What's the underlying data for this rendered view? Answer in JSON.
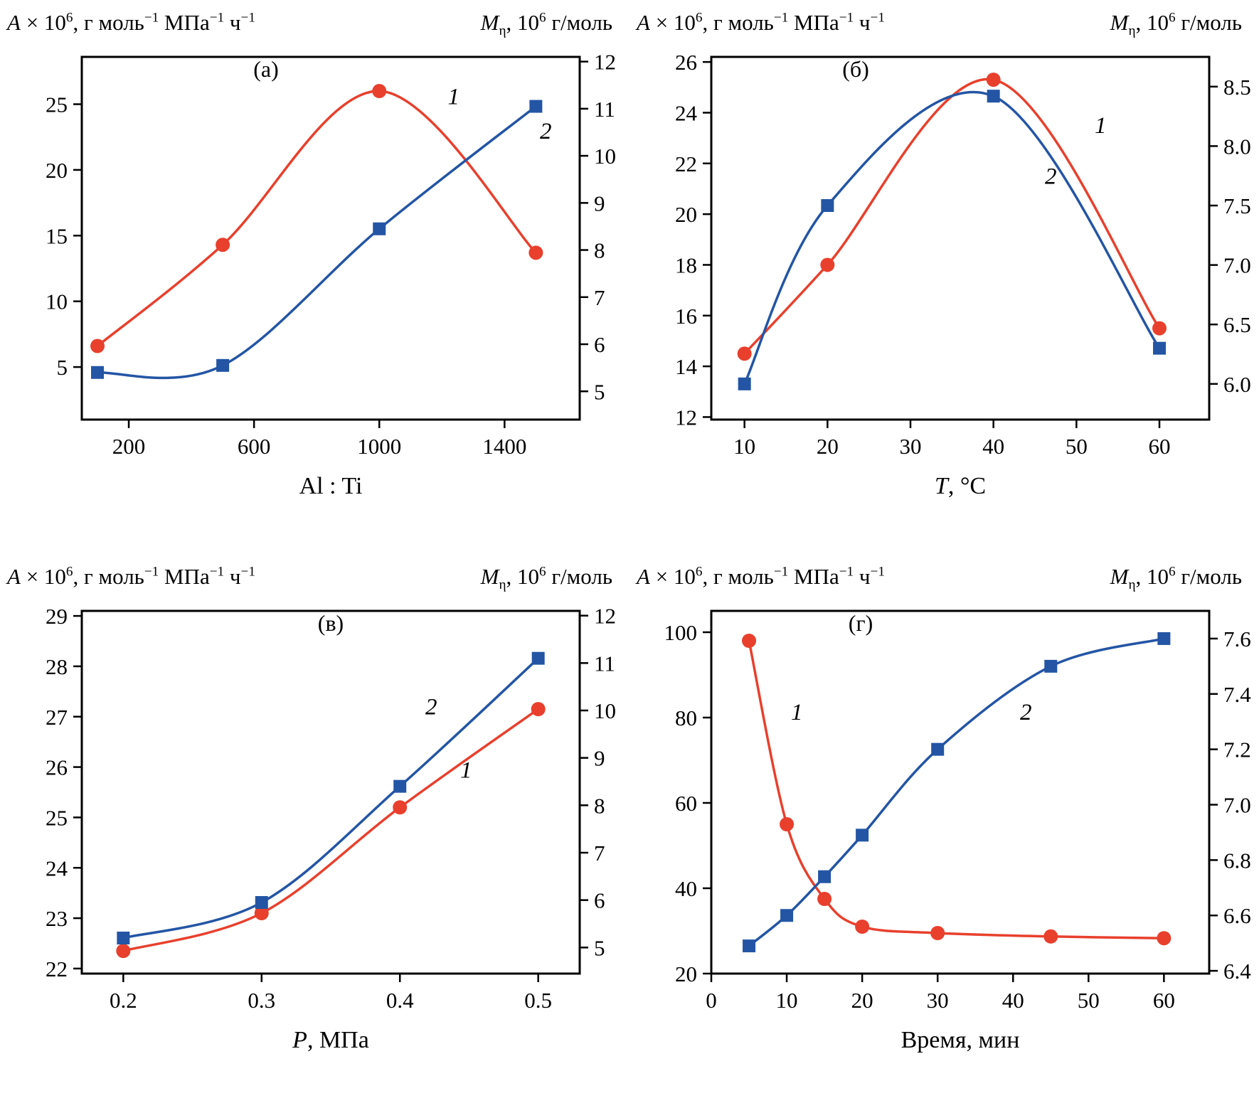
{
  "chart_data": [
    {
      "type": "line",
      "panel_label": "(а)",
      "panel_pos": {
        "fx": 0.37,
        "fy": 0.055
      },
      "left_title": [
        [
          "i",
          "A"
        ],
        [
          "n",
          " × 10"
        ],
        [
          "sup",
          "6"
        ],
        [
          "n",
          ", г моль"
        ],
        [
          "sup",
          "−1"
        ],
        [
          "n",
          " МПа"
        ],
        [
          "sup",
          "−1"
        ],
        [
          "n",
          " ч"
        ],
        [
          "sup",
          "−1"
        ]
      ],
      "right_title": [
        [
          "i",
          "M"
        ],
        [
          "sub",
          "η"
        ],
        [
          "n",
          ", 10"
        ],
        [
          "sup",
          "6"
        ],
        [
          "n",
          " г/моль"
        ]
      ],
      "xlabel": [
        [
          "n",
          "Al : Ti"
        ]
      ],
      "x_ticks": [
        200,
        600,
        1000,
        1400
      ],
      "x_decimals": 0,
      "xlim": [
        50,
        1640
      ],
      "left_axis": {
        "ticks": [
          5,
          10,
          15,
          20,
          25
        ],
        "decimals": 0,
        "lim": [
          1,
          28.6
        ]
      },
      "right_axis": {
        "ticks": [
          5,
          6,
          7,
          8,
          9,
          10,
          11,
          12
        ],
        "decimals": 0,
        "lim": [
          4.4,
          12.1
        ]
      },
      "series": [
        {
          "name": "1",
          "axis": "left",
          "marker": "circle",
          "color": "#e8402d",
          "x": [
            100,
            500,
            1000,
            1500
          ],
          "y": [
            6.6,
            14.3,
            26.0,
            13.7
          ],
          "label_pos": {
            "fx": 0.735,
            "fy": 0.13
          }
        },
        {
          "name": "2",
          "axis": "right",
          "marker": "square",
          "color": "#2355a4",
          "x": [
            100,
            500,
            1000,
            1500
          ],
          "y": [
            5.4,
            5.55,
            8.45,
            11.05
          ],
          "label_pos": {
            "fx": 0.92,
            "fy": 0.225
          }
        }
      ]
    },
    {
      "type": "line",
      "panel_label": "(б)",
      "panel_pos": {
        "fx": 0.29,
        "fy": 0.055
      },
      "left_title": [
        [
          "i",
          "A"
        ],
        [
          "n",
          " × 10"
        ],
        [
          "sup",
          "6"
        ],
        [
          "n",
          ", г моль"
        ],
        [
          "sup",
          "−1"
        ],
        [
          "n",
          " МПа"
        ],
        [
          "sup",
          "−1"
        ],
        [
          "n",
          " ч"
        ],
        [
          "sup",
          "−1"
        ]
      ],
      "right_title": [
        [
          "i",
          "M"
        ],
        [
          "sub",
          "η"
        ],
        [
          "n",
          ", 10"
        ],
        [
          "sup",
          "6"
        ],
        [
          "n",
          " г/моль"
        ]
      ],
      "xlabel": [
        [
          "i",
          "T"
        ],
        [
          "n",
          ", °C"
        ]
      ],
      "x_ticks": [
        10,
        20,
        30,
        40,
        50,
        60
      ],
      "x_decimals": 0,
      "xlim": [
        6,
        66
      ],
      "left_axis": {
        "ticks": [
          12,
          14,
          16,
          18,
          20,
          22,
          24,
          26
        ],
        "decimals": 0,
        "lim": [
          11.9,
          26.2
        ]
      },
      "right_axis": {
        "ticks": [
          6.0,
          6.5,
          7.0,
          7.5,
          8.0,
          8.5
        ],
        "decimals": 1,
        "lim": [
          5.7,
          8.75
        ]
      },
      "series": [
        {
          "name": "1",
          "axis": "left",
          "marker": "circle",
          "color": "#e8402d",
          "x": [
            10,
            20,
            40,
            60
          ],
          "y": [
            14.5,
            18.0,
            25.3,
            15.5
          ],
          "label_pos": {
            "fx": 0.77,
            "fy": 0.21
          }
        },
        {
          "name": "2",
          "axis": "right",
          "marker": "square",
          "color": "#2355a4",
          "x": [
            10,
            20,
            40,
            60
          ],
          "y": [
            6.0,
            7.5,
            8.42,
            6.3
          ],
          "label_pos": {
            "fx": 0.67,
            "fy": 0.35
          }
        }
      ]
    },
    {
      "type": "line",
      "panel_label": "(в)",
      "panel_pos": {
        "fx": 0.5,
        "fy": 0.055
      },
      "left_title": [
        [
          "i",
          "A"
        ],
        [
          "n",
          " × 10"
        ],
        [
          "sup",
          "6"
        ],
        [
          "n",
          ", г моль"
        ],
        [
          "sup",
          "−1"
        ],
        [
          "n",
          " МПа"
        ],
        [
          "sup",
          "−1"
        ],
        [
          "n",
          " ч"
        ],
        [
          "sup",
          "−1"
        ]
      ],
      "right_title": [
        [
          "i",
          "M"
        ],
        [
          "sub",
          "η"
        ],
        [
          "n",
          ", 10"
        ],
        [
          "sup",
          "6"
        ],
        [
          "n",
          " г/моль"
        ]
      ],
      "xlabel": [
        [
          "i",
          "P"
        ],
        [
          "n",
          ", МПа"
        ]
      ],
      "x_ticks": [
        0.2,
        0.3,
        0.4,
        0.5
      ],
      "x_decimals": 1,
      "xlim": [
        0.17,
        0.53
      ],
      "left_axis": {
        "ticks": [
          22,
          23,
          24,
          25,
          26,
          27,
          28,
          29
        ],
        "decimals": 0,
        "lim": [
          21.9,
          29.1
        ]
      },
      "right_axis": {
        "ticks": [
          5,
          6,
          7,
          8,
          9,
          10,
          11,
          12
        ],
        "decimals": 0,
        "lim": [
          4.45,
          12.1
        ]
      },
      "series": [
        {
          "name": "1",
          "axis": "left",
          "marker": "circle",
          "color": "#e8402d",
          "x": [
            0.2,
            0.3,
            0.4,
            0.5
          ],
          "y": [
            22.35,
            23.1,
            25.2,
            27.15
          ],
          "label_pos": {
            "fx": 0.76,
            "fy": 0.46
          }
        },
        {
          "name": "2",
          "axis": "right",
          "marker": "square",
          "color": "#2355a4",
          "x": [
            0.2,
            0.3,
            0.4,
            0.5
          ],
          "y": [
            5.2,
            5.95,
            8.4,
            11.1
          ],
          "label_pos": {
            "fx": 0.69,
            "fy": 0.285
          }
        }
      ]
    },
    {
      "type": "line",
      "panel_label": "(г)",
      "panel_pos": {
        "fx": 0.3,
        "fy": 0.055
      },
      "left_title": [
        [
          "i",
          "A"
        ],
        [
          "n",
          " × 10"
        ],
        [
          "sup",
          "6"
        ],
        [
          "n",
          ", г моль"
        ],
        [
          "sup",
          "−1"
        ],
        [
          "n",
          " МПа"
        ],
        [
          "sup",
          "−1"
        ],
        [
          "n",
          " ч"
        ],
        [
          "sup",
          "−1"
        ]
      ],
      "right_title": [
        [
          "i",
          "M"
        ],
        [
          "sub",
          "η"
        ],
        [
          "n",
          ", 10"
        ],
        [
          "sup",
          "6"
        ],
        [
          "n",
          " г/моль"
        ]
      ],
      "xlabel": [
        [
          "n",
          "Время, мин"
        ]
      ],
      "x_ticks": [
        0,
        10,
        20,
        30,
        40,
        50,
        60
      ],
      "x_decimals": 0,
      "xlim": [
        0,
        66
      ],
      "left_axis": {
        "ticks": [
          20,
          40,
          60,
          80,
          100
        ],
        "decimals": 0,
        "lim": [
          20,
          105
        ]
      },
      "right_axis": {
        "ticks": [
          6.4,
          6.6,
          6.8,
          7.0,
          7.2,
          7.4,
          7.6
        ],
        "decimals": 1,
        "lim": [
          6.39,
          7.7
        ]
      },
      "series": [
        {
          "name": "1",
          "axis": "left",
          "marker": "circle",
          "color": "#e8402d",
          "x": [
            5,
            10,
            15,
            20,
            30,
            45,
            60
          ],
          "y": [
            98,
            55,
            37.5,
            31,
            29.5,
            28.7,
            28.3
          ],
          "label_pos": {
            "fx": 0.16,
            "fy": 0.3
          }
        },
        {
          "name": "2",
          "axis": "right",
          "marker": "square",
          "color": "#2355a4",
          "x": [
            5,
            10,
            15,
            20,
            30,
            45,
            60
          ],
          "y": [
            6.49,
            6.6,
            6.74,
            6.89,
            7.2,
            7.5,
            7.6
          ],
          "label_pos": {
            "fx": 0.62,
            "fy": 0.3
          }
        }
      ]
    }
  ]
}
